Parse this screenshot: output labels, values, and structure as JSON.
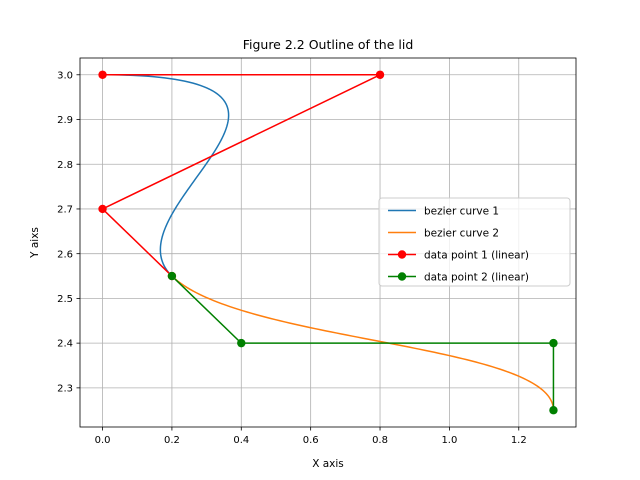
{
  "chart_data": {
    "type": "line",
    "title": "Figure 2.2 Outline of the lid",
    "xlabel": "X axis",
    "ylabel": "Y aixs",
    "xlim": [
      -0.065,
      1.365
    ],
    "ylim": [
      2.2125,
      3.0375
    ],
    "xticks": [
      0.0,
      0.2,
      0.4,
      0.6,
      0.8,
      1.0,
      1.2
    ],
    "xtick_labels": [
      "0.0",
      "0.2",
      "0.4",
      "0.6",
      "0.8",
      "1.0",
      "1.2"
    ],
    "yticks": [
      2.3,
      2.4,
      2.5,
      2.6,
      2.7,
      2.8,
      2.9,
      3.0
    ],
    "ytick_labels": [
      "2.3",
      "2.4",
      "2.5",
      "2.6",
      "2.7",
      "2.8",
      "2.9",
      "3.0"
    ],
    "grid": true,
    "legend_position": "center-right",
    "series": [
      {
        "name": "bezier curve 1",
        "kind": "bezier",
        "color": "#1f77b4",
        "control_points": [
          [
            0.0,
            3.0
          ],
          [
            0.8,
            3.0
          ],
          [
            0.0,
            2.7
          ],
          [
            0.2,
            2.55
          ]
        ]
      },
      {
        "name": "bezier curve 2",
        "kind": "bezier",
        "color": "#ff7f0e",
        "control_points": [
          [
            0.2,
            2.55
          ],
          [
            0.4,
            2.4
          ],
          [
            1.3,
            2.4
          ],
          [
            1.3,
            2.25
          ]
        ]
      },
      {
        "name": "data point 1 (linear)",
        "kind": "line-markers",
        "color": "#ff0000",
        "x": [
          0.0,
          0.8,
          0.0,
          0.2
        ],
        "y": [
          3.0,
          3.0,
          2.7,
          2.55
        ]
      },
      {
        "name": "data point 2 (linear)",
        "kind": "line-markers",
        "color": "#008000",
        "x": [
          0.2,
          0.4,
          1.3,
          1.3
        ],
        "y": [
          2.55,
          2.4,
          2.4,
          2.25
        ]
      }
    ]
  }
}
